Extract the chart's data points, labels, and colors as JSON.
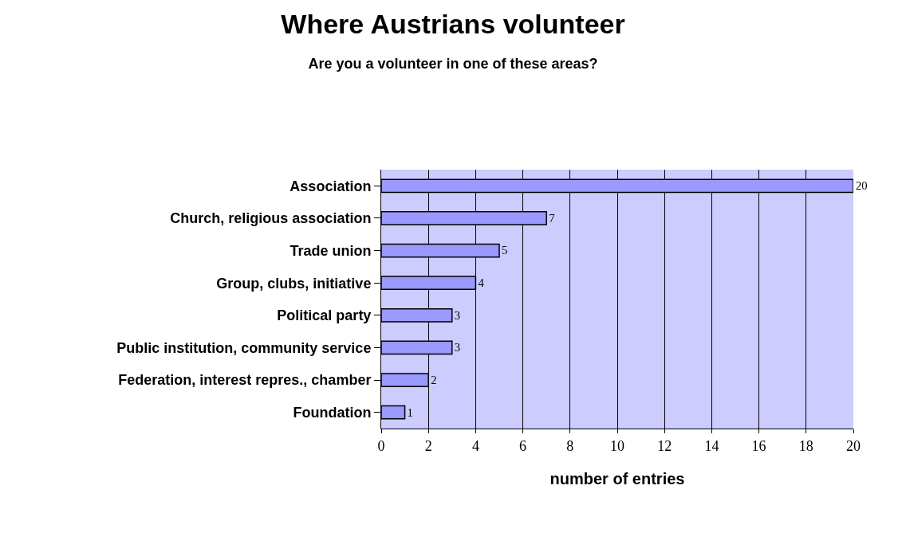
{
  "chart_data": {
    "type": "bar",
    "orientation": "horizontal",
    "title": "Where Austrians volunteer",
    "subtitle": "Are you a volunteer in one of these areas?",
    "xlabel": "number of entries",
    "categories": [
      "Association",
      "Church, religious association",
      "Trade union",
      "Group, clubs, initiative",
      "Political party",
      "Public institution, community service",
      "Federation, interest repres., chamber",
      "Foundation"
    ],
    "values": [
      20,
      7,
      5,
      4,
      3,
      3,
      2,
      1
    ],
    "color": "#9999ff",
    "xlim": [
      0,
      20
    ],
    "xticks": [
      0,
      2,
      4,
      6,
      8,
      10,
      12,
      14,
      16,
      18,
      20
    ],
    "grid": "x",
    "data_labels": true,
    "legend": false
  }
}
